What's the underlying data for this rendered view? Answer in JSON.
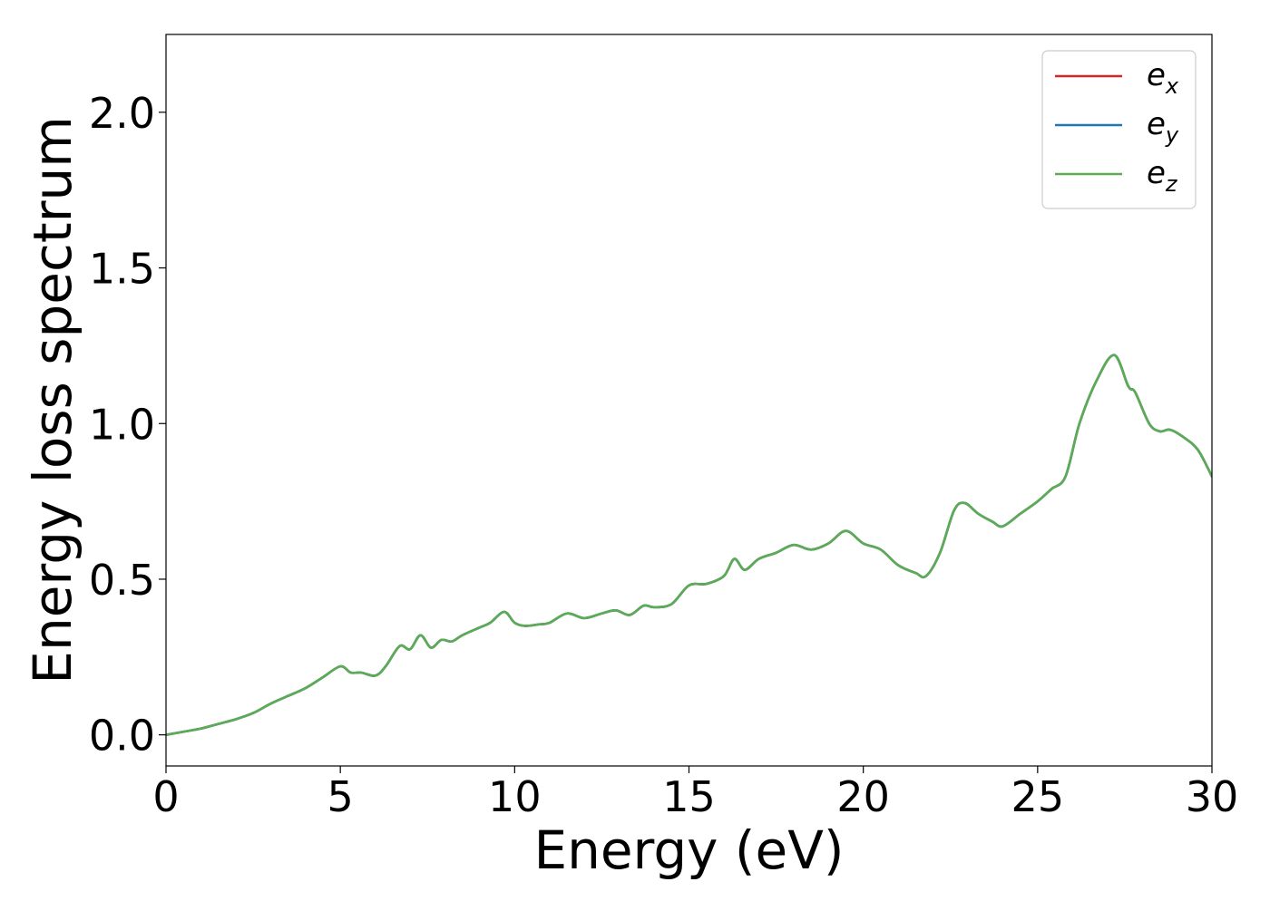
{
  "chart_data": {
    "type": "line",
    "title": "",
    "xlabel": "Energy (eV)",
    "ylabel": "Energy loss spectrum",
    "xlim": [
      0,
      30
    ],
    "ylim": [
      -0.1,
      2.25
    ],
    "xticks": [
      0,
      5,
      10,
      15,
      20,
      25,
      30
    ],
    "yticks": [
      0.0,
      0.5,
      1.0,
      1.5,
      2.0
    ],
    "xtick_labels": [
      "0",
      "5",
      "10",
      "15",
      "20",
      "25",
      "30"
    ],
    "ytick_labels": [
      "0.0",
      "0.5",
      "1.0",
      "1.5",
      "2.0"
    ],
    "grid": false,
    "legend_position": "top-right",
    "x": [
      0,
      0.5,
      1,
      1.5,
      2,
      2.5,
      3,
      3.5,
      4,
      4.5,
      5,
      5.3,
      5.6,
      6,
      6.3,
      6.7,
      7,
      7.3,
      7.6,
      7.9,
      8.2,
      8.5,
      9,
      9.3,
      9.7,
      10,
      10.3,
      10.7,
      11,
      11.5,
      12,
      12.5,
      12.9,
      13.3,
      13.7,
      14,
      14.5,
      15,
      15.5,
      16,
      16.3,
      16.6,
      17,
      17.5,
      18,
      18.5,
      19,
      19.5,
      20,
      20.5,
      21,
      21.5,
      21.8,
      22.2,
      22.6,
      22.9,
      23.3,
      23.7,
      24,
      24.5,
      25,
      25.4,
      25.8,
      26.2,
      26.7,
      27.2,
      27.6,
      27.8,
      28.2,
      28.5,
      28.8,
      29.2,
      29.6,
      30
    ],
    "series": [
      {
        "name": "e_x",
        "color": "#d62728",
        "values": [
          0.0,
          0.01,
          0.02,
          0.035,
          0.05,
          0.07,
          0.1,
          0.125,
          0.15,
          0.185,
          0.22,
          0.2,
          0.2,
          0.19,
          0.22,
          0.285,
          0.275,
          0.32,
          0.28,
          0.305,
          0.3,
          0.32,
          0.345,
          0.36,
          0.395,
          0.36,
          0.35,
          0.355,
          0.36,
          0.39,
          0.375,
          0.39,
          0.4,
          0.385,
          0.415,
          0.41,
          0.42,
          0.48,
          0.485,
          0.51,
          0.565,
          0.53,
          0.565,
          0.585,
          0.61,
          0.595,
          0.615,
          0.655,
          0.615,
          0.595,
          0.545,
          0.52,
          0.51,
          0.585,
          0.72,
          0.745,
          0.71,
          0.685,
          0.67,
          0.71,
          0.75,
          0.79,
          0.83,
          1.0,
          1.14,
          1.22,
          1.12,
          1.1,
          1.0,
          0.975,
          0.98,
          0.955,
          0.915,
          0.83
        ]
      },
      {
        "name": "e_y",
        "color": "#1f77b4",
        "values": [
          0.0,
          0.01,
          0.02,
          0.035,
          0.05,
          0.07,
          0.1,
          0.125,
          0.15,
          0.185,
          0.22,
          0.2,
          0.2,
          0.19,
          0.22,
          0.285,
          0.275,
          0.32,
          0.28,
          0.305,
          0.3,
          0.32,
          0.345,
          0.36,
          0.395,
          0.36,
          0.35,
          0.355,
          0.36,
          0.39,
          0.375,
          0.39,
          0.4,
          0.385,
          0.415,
          0.41,
          0.42,
          0.48,
          0.485,
          0.51,
          0.565,
          0.53,
          0.565,
          0.585,
          0.61,
          0.595,
          0.615,
          0.655,
          0.615,
          0.595,
          0.545,
          0.52,
          0.51,
          0.585,
          0.72,
          0.745,
          0.71,
          0.685,
          0.67,
          0.71,
          0.75,
          0.79,
          0.83,
          1.0,
          1.14,
          1.22,
          1.12,
          1.1,
          1.0,
          0.975,
          0.98,
          0.955,
          0.915,
          0.83
        ]
      },
      {
        "name": "e_z",
        "color": "#5aad54",
        "values": [
          0.0,
          0.01,
          0.02,
          0.035,
          0.05,
          0.07,
          0.1,
          0.125,
          0.15,
          0.185,
          0.22,
          0.2,
          0.2,
          0.19,
          0.22,
          0.285,
          0.275,
          0.32,
          0.28,
          0.305,
          0.3,
          0.32,
          0.345,
          0.36,
          0.395,
          0.36,
          0.35,
          0.355,
          0.36,
          0.39,
          0.375,
          0.39,
          0.4,
          0.385,
          0.415,
          0.41,
          0.42,
          0.48,
          0.485,
          0.51,
          0.565,
          0.53,
          0.565,
          0.585,
          0.61,
          0.595,
          0.615,
          0.655,
          0.615,
          0.595,
          0.545,
          0.52,
          0.51,
          0.585,
          0.72,
          0.745,
          0.71,
          0.685,
          0.67,
          0.71,
          0.75,
          0.79,
          0.83,
          1.0,
          1.14,
          1.22,
          1.12,
          1.1,
          1.0,
          0.975,
          0.98,
          0.955,
          0.915,
          0.83
        ]
      }
    ],
    "legend": [
      {
        "base": "e",
        "sub": "x",
        "color": "#d62728"
      },
      {
        "base": "e",
        "sub": "y",
        "color": "#1f77b4"
      },
      {
        "base": "e",
        "sub": "z",
        "color": "#5aad54"
      }
    ]
  }
}
